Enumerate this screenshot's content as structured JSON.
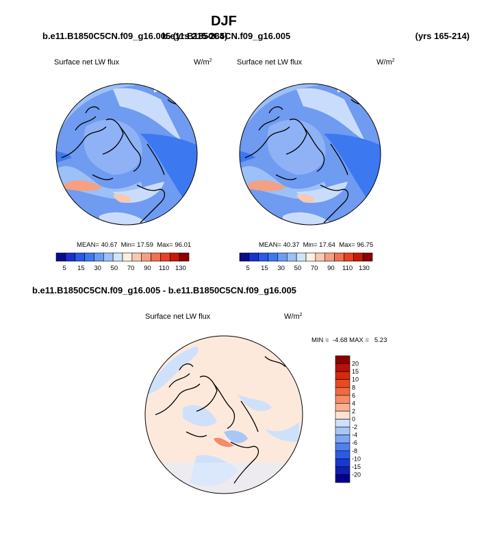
{
  "title": "DJF",
  "panels": [
    {
      "case": "b.e11.B1850C5CN.f09_g16.005 (yrs 215-264)",
      "variable": "Surface net LW flux",
      "units": "W/m",
      "units_power": "2",
      "stats": "MEAN= 40.67  Min= 17.59  Max= 96.01"
    },
    {
      "case": "b.e11.B1850C5CN.f09_g16.005",
      "years": "(yrs 165-214)",
      "variable": "Surface net LW flux",
      "units": "W/m",
      "units_power": "2",
      "stats": "MEAN= 40.37  Min= 17.64  Max= 96.75"
    }
  ],
  "colorbar": {
    "labels": [
      5,
      15,
      30,
      50,
      70,
      90,
      110,
      130
    ],
    "colors": [
      "#0b0b8c",
      "#1a2fd0",
      "#2a5ae8",
      "#3c78f0",
      "#6a9cf5",
      "#9cc0f8",
      "#d0e4fb",
      "#fdefe2",
      "#f8c8b0",
      "#f5a080",
      "#f07050",
      "#e84020",
      "#c81808",
      "#8b0000"
    ]
  },
  "difference": {
    "title": "b.e11.B1850C5CN.f09_g16.005 - b.e11.B1850C5CN.f09_g16.005",
    "variable": "Surface net LW flux",
    "units": "W/m",
    "units_power": "2",
    "stats": "MIN =  -4.68 MAX =   5.23",
    "colorbar": {
      "labels": [
        20,
        15,
        10,
        8,
        6,
        4,
        2,
        0,
        -2,
        -4,
        -6,
        -8,
        -10,
        -15,
        -20
      ],
      "colors": [
        "#8b0000",
        "#b81008",
        "#d8280c",
        "#e84a22",
        "#f06a40",
        "#f58c66",
        "#f8b292",
        "#fce3d0",
        "#cfe0fb",
        "#a8c6f8",
        "#7ea6f3",
        "#4f80ee",
        "#2c5ae6",
        "#1a38d0",
        "#0f1fb0",
        "#00008b"
      ]
    }
  }
}
